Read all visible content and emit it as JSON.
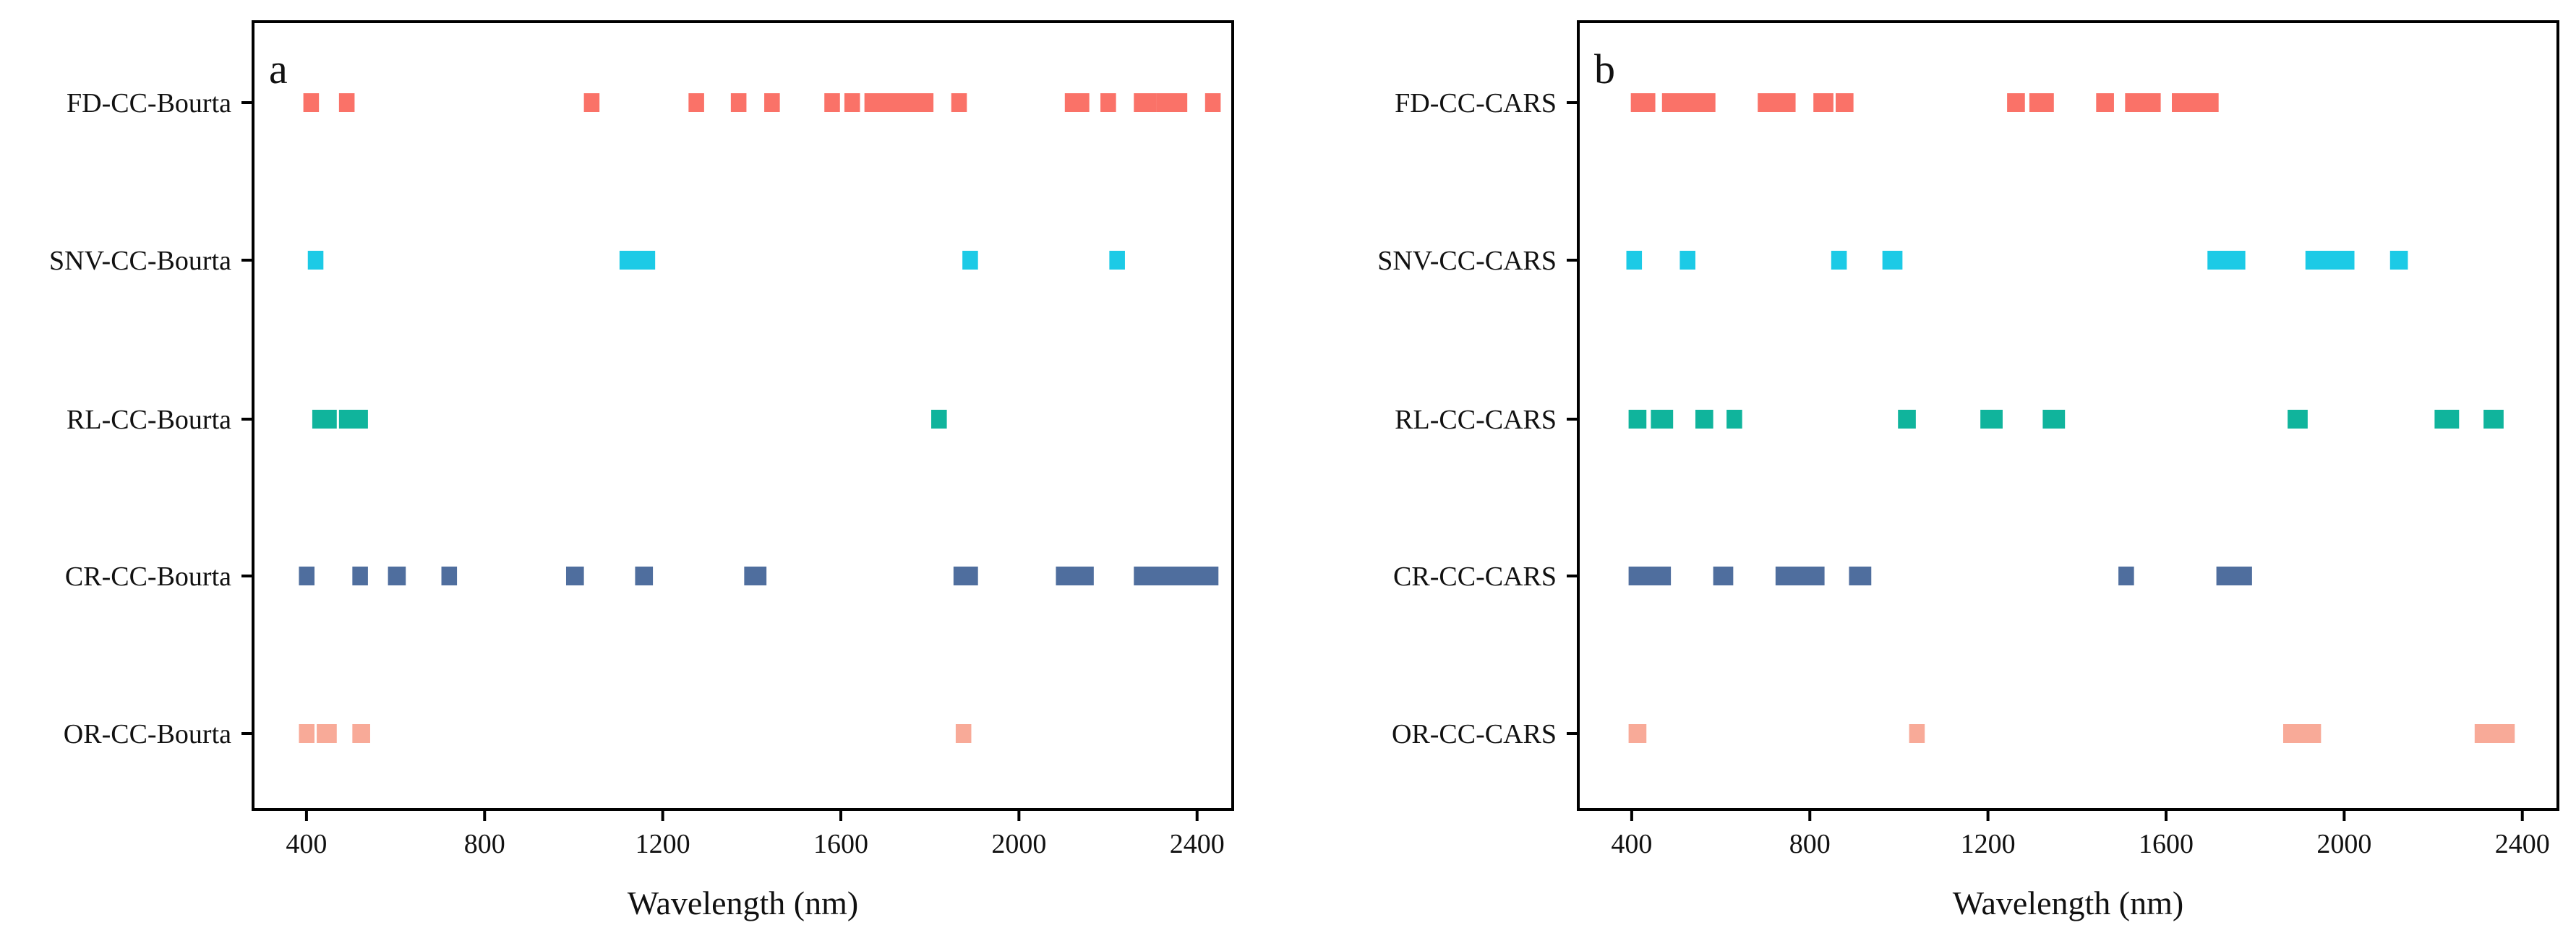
{
  "chart_data": [
    {
      "type": "scatter",
      "panel_label": "a",
      "xlabel": "Wavelength (nm)",
      "xlim": [
        280,
        2480
      ],
      "xticks": [
        400,
        800,
        1200,
        1600,
        2000,
        2400
      ],
      "xtick_labels": [
        "400",
        "800",
        "1200",
        "1600",
        "2000",
        "2400"
      ],
      "mark_style": "square",
      "categories": [
        "FD-CC-Bourta",
        "SNV-CC-Bourta",
        "RL-CC-Bourta",
        "CR-CC-Bourta",
        "OR-CC-Bourta"
      ],
      "series": [
        {
          "name": "FD-CC-Bourta",
          "color": "#FA7268",
          "segments": [
            [
              393,
              428
            ],
            [
              473,
              508
            ],
            [
              1023,
              1058
            ],
            [
              1258,
              1293
            ],
            [
              1353,
              1388
            ],
            [
              1428,
              1463
            ],
            [
              1563,
              1598
            ],
            [
              1608,
              1643
            ],
            [
              1653,
              1808
            ],
            [
              1848,
              1883
            ],
            [
              2103,
              2158
            ],
            [
              2183,
              2218
            ],
            [
              2258,
              2308
            ],
            [
              2308,
              2378
            ],
            [
              2418,
              2453
            ]
          ]
        },
        {
          "name": "SNV-CC-Bourta",
          "color": "#1CCAE6",
          "segments": [
            [
              403,
              438
            ],
            [
              1103,
              1183
            ],
            [
              1873,
              1908
            ],
            [
              2203,
              2238
            ]
          ]
        },
        {
          "name": "RL-CC-Bourta",
          "color": "#10B49C",
          "segments": [
            [
              413,
              468
            ],
            [
              473,
              538
            ],
            [
              1803,
              1838
            ]
          ]
        },
        {
          "name": "CR-CC-Bourta",
          "color": "#4F6E9E",
          "segments": [
            [
              383,
              418
            ],
            [
              503,
              538
            ],
            [
              583,
              623
            ],
            [
              703,
              738
            ],
            [
              983,
              1023
            ],
            [
              1138,
              1178
            ],
            [
              1383,
              1433
            ],
            [
              1853,
              1908
            ],
            [
              2083,
              2168
            ],
            [
              2258,
              2448
            ]
          ]
        },
        {
          "name": "OR-CC-Bourta",
          "color": "#F8AA98",
          "segments": [
            [
              383,
              418
            ],
            [
              423,
              468
            ],
            [
              503,
              543
            ],
            [
              1858,
              1893
            ]
          ]
        }
      ]
    },
    {
      "type": "scatter",
      "panel_label": "b",
      "xlabel": "Wavelength (nm)",
      "xlim": [
        280,
        2480
      ],
      "xticks": [
        400,
        800,
        1200,
        1600,
        2000,
        2400
      ],
      "xtick_labels": [
        "400",
        "800",
        "1200",
        "1600",
        "2000",
        "2400"
      ],
      "mark_style": "square",
      "categories": [
        "FD-CC-CARS",
        "SNV-CC-CARS",
        "RL-CC-CARS",
        "CR-CC-CARS",
        "OR-CC-CARS"
      ],
      "series": [
        {
          "name": "FD-CC-CARS",
          "color": "#FA7268",
          "segments": [
            [
              398,
              453
            ],
            [
              468,
              588
            ],
            [
              683,
              768
            ],
            [
              808,
              853
            ],
            [
              858,
              898
            ],
            [
              1243,
              1283
            ],
            [
              1293,
              1348
            ],
            [
              1443,
              1483
            ],
            [
              1508,
              1588
            ],
            [
              1613,
              1718
            ]
          ]
        },
        {
          "name": "SNV-CC-CARS",
          "color": "#1CCAE6",
          "segments": [
            [
              388,
              423
            ],
            [
              508,
              543
            ],
            [
              848,
              883
            ],
            [
              963,
              1008
            ],
            [
              1693,
              1778
            ],
            [
              1913,
              2023
            ],
            [
              2103,
              2143
            ]
          ]
        },
        {
          "name": "RL-CC-CARS",
          "color": "#10B49C",
          "segments": [
            [
              393,
              433
            ],
            [
              443,
              493
            ],
            [
              543,
              583
            ],
            [
              613,
              648
            ],
            [
              998,
              1038
            ],
            [
              1183,
              1233
            ],
            [
              1323,
              1373
            ],
            [
              1873,
              1918
            ],
            [
              2203,
              2258
            ],
            [
              2313,
              2358
            ]
          ]
        },
        {
          "name": "CR-CC-CARS",
          "color": "#4F6E9E",
          "segments": [
            [
              393,
              488
            ],
            [
              583,
              628
            ],
            [
              723,
              833
            ],
            [
              888,
              938
            ],
            [
              1493,
              1528
            ],
            [
              1713,
              1793
            ]
          ]
        },
        {
          "name": "OR-CC-CARS",
          "color": "#F8AA98",
          "segments": [
            [
              393,
              433
            ],
            [
              1023,
              1058
            ],
            [
              1863,
              1948
            ],
            [
              2293,
              2383
            ]
          ]
        }
      ]
    }
  ]
}
